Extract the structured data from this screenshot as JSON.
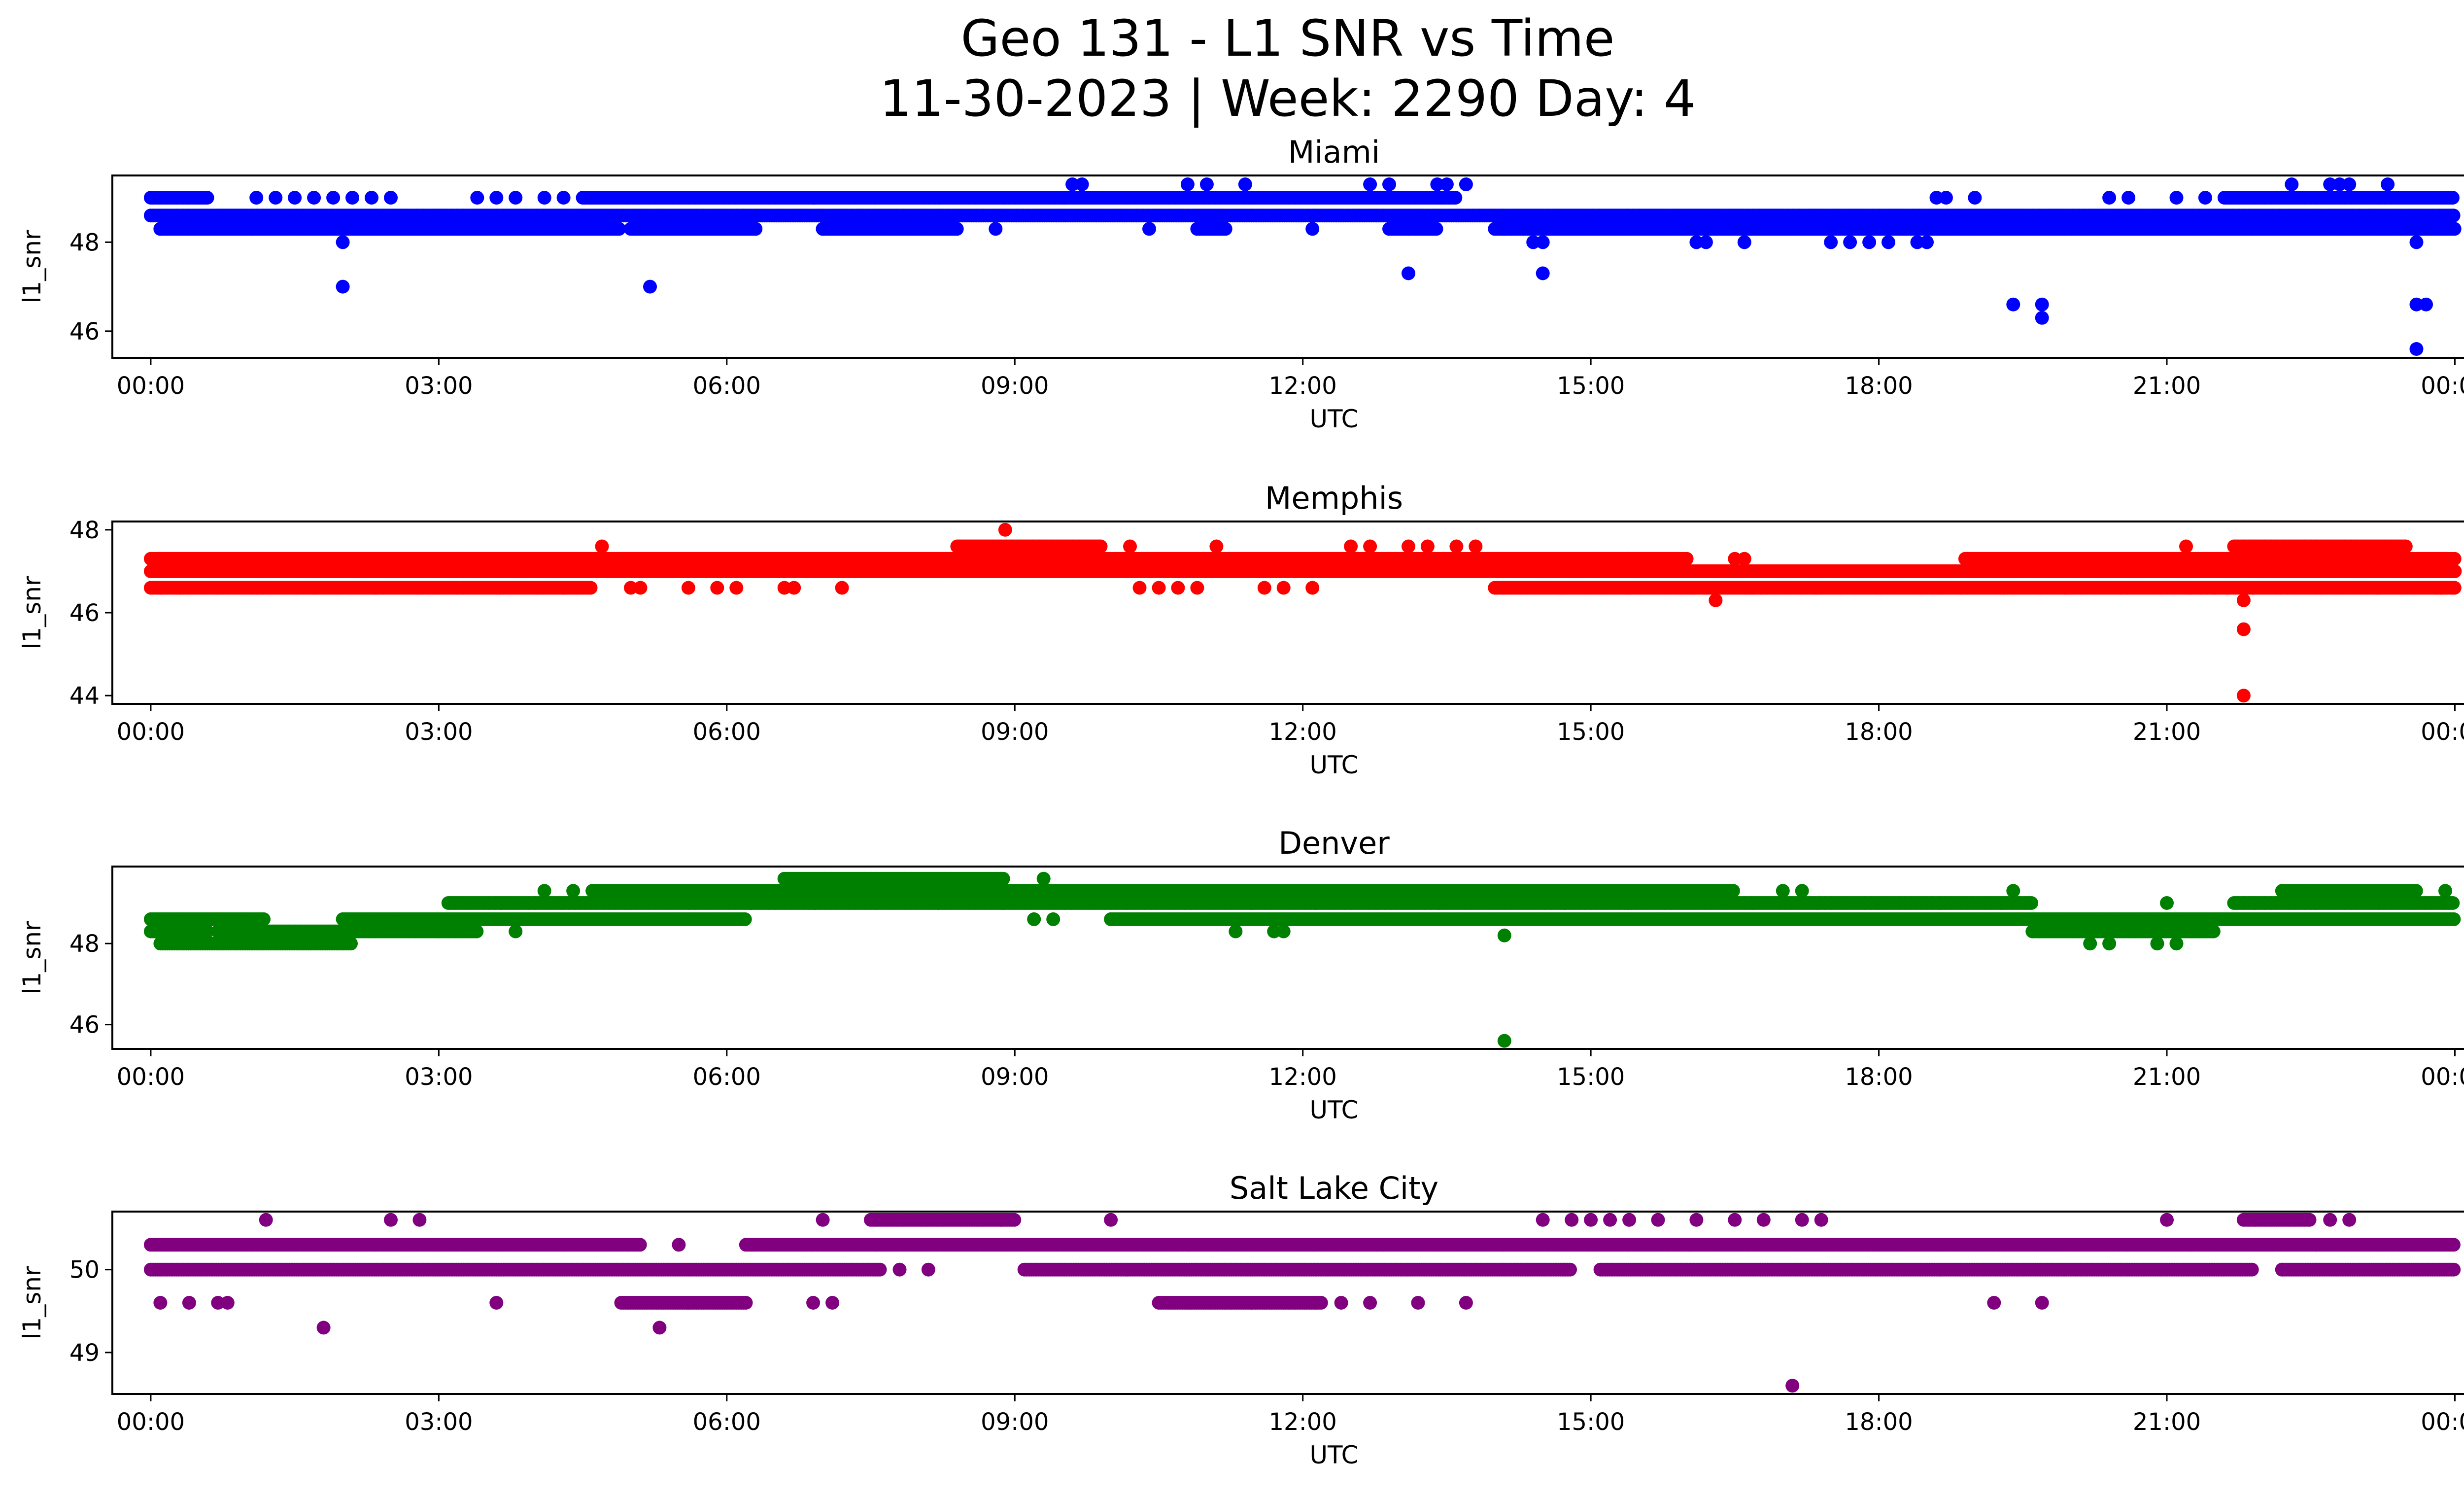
{
  "title_line1": "Geo 131 - L1 SNR vs Time",
  "title_line2": "11-30-2023 | Week: 2290 Day: 4",
  "chart_data": [
    {
      "type": "scatter",
      "title": "Miami",
      "xlabel": "UTC",
      "ylabel": "l1_snr",
      "color": "#0000ff",
      "xlim": [
        -0.4,
        25.05
      ],
      "ylim": [
        45.4,
        49.5
      ],
      "x_ticks": [
        "00:00",
        "03:00",
        "06:00",
        "09:00",
        "12:00",
        "15:00",
        "18:00",
        "21:00",
        "00:00"
      ],
      "y_ticks": [
        46,
        48
      ],
      "bands": [
        {
          "level": 48.3,
          "segments": [
            [
              0.1,
              4.9
            ],
            [
              5.0,
              6.3
            ],
            [
              7.0,
              8.4
            ],
            [
              10.9,
              11.2
            ],
            [
              12.9,
              13.4
            ],
            [
              14.0,
              24.0
            ]
          ]
        },
        {
          "level": 48.6,
          "segments": [
            [
              0.0,
              24.0
            ]
          ]
        },
        {
          "level": 49.0,
          "segments": [
            [
              0.0,
              0.6
            ],
            [
              4.5,
              13.6
            ],
            [
              21.6,
              24.0
            ]
          ]
        }
      ],
      "points": [
        [
          0.1,
          48.3
        ],
        [
          0.5,
          49.0
        ],
        [
          1.1,
          49.0
        ],
        [
          1.3,
          49.0
        ],
        [
          1.5,
          49.0
        ],
        [
          1.7,
          49.0
        ],
        [
          1.9,
          49.0
        ],
        [
          2.0,
          48.0
        ],
        [
          2.0,
          47.0
        ],
        [
          2.1,
          49.0
        ],
        [
          2.3,
          49.0
        ],
        [
          2.5,
          49.0
        ],
        [
          3.4,
          49.0
        ],
        [
          3.6,
          49.0
        ],
        [
          3.8,
          49.0
        ],
        [
          4.1,
          49.0
        ],
        [
          4.3,
          49.0
        ],
        [
          5.2,
          47.0
        ],
        [
          6.3,
          48.3
        ],
        [
          6.9,
          49.0
        ],
        [
          7.0,
          48.3
        ],
        [
          8.8,
          48.3
        ],
        [
          9.6,
          49.3
        ],
        [
          9.7,
          49.3
        ],
        [
          10.4,
          48.3
        ],
        [
          10.8,
          49.3
        ],
        [
          11.0,
          49.3
        ],
        [
          11.4,
          49.3
        ],
        [
          12.1,
          48.3
        ],
        [
          12.7,
          49.3
        ],
        [
          12.9,
          49.3
        ],
        [
          13.1,
          47.3
        ],
        [
          13.1,
          48.3
        ],
        [
          13.4,
          49.3
        ],
        [
          13.5,
          49.3
        ],
        [
          13.7,
          49.3
        ],
        [
          14.1,
          48.3
        ],
        [
          14.4,
          48.0
        ],
        [
          14.5,
          48.0
        ],
        [
          14.5,
          47.3
        ],
        [
          16.1,
          48.0
        ],
        [
          16.2,
          48.0
        ],
        [
          16.6,
          48.0
        ],
        [
          17.5,
          48.0
        ],
        [
          17.7,
          48.0
        ],
        [
          17.9,
          48.0
        ],
        [
          18.1,
          48.0
        ],
        [
          18.4,
          48.0
        ],
        [
          18.5,
          48.0
        ],
        [
          18.6,
          49.0
        ],
        [
          18.7,
          49.0
        ],
        [
          19.0,
          49.0
        ],
        [
          19.4,
          46.6
        ],
        [
          19.7,
          46.6
        ],
        [
          19.7,
          46.3
        ],
        [
          20.4,
          49.0
        ],
        [
          20.6,
          49.0
        ],
        [
          21.1,
          49.0
        ],
        [
          21.4,
          49.0
        ],
        [
          22.3,
          49.3
        ],
        [
          22.7,
          49.3
        ],
        [
          22.8,
          49.3
        ],
        [
          22.9,
          49.3
        ],
        [
          23.3,
          49.3
        ],
        [
          23.6,
          48.0
        ],
        [
          23.6,
          46.6
        ],
        [
          23.7,
          46.6
        ],
        [
          23.6,
          45.6
        ],
        [
          23.6,
          48.3
        ]
      ]
    },
    {
      "type": "scatter",
      "title": "Memphis",
      "xlabel": "UTC",
      "ylabel": "l1_snr",
      "color": "#ff0000",
      "xlim": [
        -0.4,
        25.05
      ],
      "ylim": [
        43.8,
        48.2
      ],
      "x_ticks": [
        "00:00",
        "03:00",
        "06:00",
        "09:00",
        "12:00",
        "15:00",
        "18:00",
        "21:00",
        "00:00"
      ],
      "y_ticks": [
        44,
        46,
        48
      ],
      "bands": [
        {
          "level": 46.6,
          "segments": [
            [
              0.0,
              4.6
            ],
            [
              14.0,
              24.0
            ]
          ]
        },
        {
          "level": 47.0,
          "segments": [
            [
              0.0,
              24.0
            ]
          ]
        },
        {
          "level": 47.3,
          "segments": [
            [
              0.0,
              16.0
            ],
            [
              18.9,
              24.0
            ]
          ]
        },
        {
          "level": 47.6,
          "segments": [
            [
              8.4,
              9.9
            ],
            [
              21.7,
              23.5
            ]
          ]
        }
      ],
      "points": [
        [
          0.1,
          46.6
        ],
        [
          0.3,
          46.6
        ],
        [
          4.7,
          47.6
        ],
        [
          5.0,
          46.6
        ],
        [
          5.1,
          46.6
        ],
        [
          5.6,
          46.6
        ],
        [
          5.9,
          46.6
        ],
        [
          6.1,
          46.6
        ],
        [
          6.6,
          46.6
        ],
        [
          6.7,
          46.6
        ],
        [
          7.2,
          46.6
        ],
        [
          8.9,
          48.0
        ],
        [
          10.2,
          47.6
        ],
        [
          10.3,
          46.6
        ],
        [
          10.5,
          46.6
        ],
        [
          10.7,
          46.6
        ],
        [
          10.9,
          46.6
        ],
        [
          11.1,
          47.6
        ],
        [
          11.6,
          46.6
        ],
        [
          11.8,
          46.6
        ],
        [
          12.1,
          46.6
        ],
        [
          12.5,
          47.6
        ],
        [
          12.7,
          47.6
        ],
        [
          13.1,
          47.6
        ],
        [
          13.3,
          47.6
        ],
        [
          13.6,
          47.6
        ],
        [
          13.8,
          47.6
        ],
        [
          16.3,
          46.3
        ],
        [
          16.5,
          47.3
        ],
        [
          16.6,
          47.3
        ],
        [
          21.2,
          47.6
        ],
        [
          21.5,
          46.6
        ],
        [
          21.8,
          46.6
        ],
        [
          21.8,
          46.3
        ],
        [
          21.8,
          45.6
        ],
        [
          21.8,
          44.0
        ],
        [
          23.8,
          46.6
        ],
        [
          24.0,
          47.0
        ]
      ]
    },
    {
      "type": "scatter",
      "title": "Denver",
      "xlabel": "UTC",
      "ylabel": "l1_snr",
      "color": "#008000",
      "xlim": [
        -0.4,
        25.05
      ],
      "ylim": [
        45.4,
        49.9
      ],
      "x_ticks": [
        "00:00",
        "03:00",
        "06:00",
        "09:00",
        "12:00",
        "15:00",
        "18:00",
        "21:00",
        "00:00"
      ],
      "y_ticks": [
        46,
        48
      ],
      "bands": [
        {
          "level": 48.0,
          "segments": [
            [
              0.1,
              2.1
            ]
          ]
        },
        {
          "level": 48.3,
          "segments": [
            [
              0.0,
              0.6
            ],
            [
              0.7,
              3.4
            ],
            [
              19.6,
              21.5
            ]
          ]
        },
        {
          "level": 48.6,
          "segments": [
            [
              0.0,
              1.2
            ],
            [
              2.0,
              6.2
            ],
            [
              10.0,
              24.0
            ]
          ]
        },
        {
          "level": 49.0,
          "segments": [
            [
              3.1,
              19.6
            ],
            [
              21.7,
              24.0
            ]
          ]
        },
        {
          "level": 49.3,
          "segments": [
            [
              4.6,
              16.5
            ],
            [
              22.2,
              23.6
            ]
          ]
        },
        {
          "level": 49.6,
          "segments": [
            [
              6.6,
              8.9
            ]
          ]
        }
      ],
      "points": [
        [
          3.8,
          48.3
        ],
        [
          4.1,
          49.3
        ],
        [
          4.4,
          49.3
        ],
        [
          9.2,
          48.6
        ],
        [
          9.4,
          48.6
        ],
        [
          9.3,
          49.6
        ],
        [
          11.3,
          48.3
        ],
        [
          11.7,
          48.3
        ],
        [
          11.8,
          48.3
        ],
        [
          14.1,
          48.6
        ],
        [
          14.1,
          48.2
        ],
        [
          14.1,
          45.6
        ],
        [
          15.4,
          48.6
        ],
        [
          15.7,
          48.6
        ],
        [
          17.0,
          49.3
        ],
        [
          17.2,
          49.3
        ],
        [
          19.4,
          49.3
        ],
        [
          20.2,
          48.0
        ],
        [
          20.4,
          48.0
        ],
        [
          20.9,
          48.0
        ],
        [
          21.0,
          49.0
        ],
        [
          21.1,
          48.0
        ],
        [
          23.9,
          49.3
        ]
      ]
    },
    {
      "type": "scatter",
      "title": "Salt Lake City",
      "xlabel": "UTC",
      "ylabel": "l1_snr",
      "color": "#800080",
      "xlim": [
        -0.4,
        25.05
      ],
      "ylim": [
        48.5,
        50.7
      ],
      "x_ticks": [
        "00:00",
        "03:00",
        "06:00",
        "09:00",
        "12:00",
        "15:00",
        "18:00",
        "21:00",
        "00:00"
      ],
      "y_ticks": [
        49,
        50
      ],
      "bands": [
        {
          "level": 50.0,
          "segments": [
            [
              0.0,
              7.6
            ],
            [
              9.1,
              14.8
            ],
            [
              15.1,
              21.9
            ],
            [
              22.2,
              24.0
            ]
          ]
        },
        {
          "level": 50.3,
          "segments": [
            [
              0.0,
              5.1
            ],
            [
              6.2,
              24.0
            ]
          ]
        },
        {
          "level": 50.6,
          "segments": [
            [
              7.5,
              9.0
            ],
            [
              21.8,
              22.5
            ]
          ]
        },
        {
          "level": 49.6,
          "segments": [
            [
              4.9,
              6.2
            ],
            [
              10.5,
              12.2
            ]
          ]
        }
      ],
      "points": [
        [
          1.2,
          50.6
        ],
        [
          2.5,
          50.6
        ],
        [
          2.8,
          50.6
        ],
        [
          0.1,
          49.6
        ],
        [
          0.4,
          49.6
        ],
        [
          0.7,
          49.6
        ],
        [
          0.8,
          49.6
        ],
        [
          1.8,
          49.3
        ],
        [
          3.6,
          49.6
        ],
        [
          5.3,
          49.3
        ],
        [
          5.5,
          50.3
        ],
        [
          6.9,
          49.6
        ],
        [
          7.1,
          49.6
        ],
        [
          7.0,
          50.6
        ],
        [
          7.8,
          50.0
        ],
        [
          8.1,
          50.0
        ],
        [
          10.0,
          50.6
        ],
        [
          12.4,
          49.6
        ],
        [
          12.7,
          49.6
        ],
        [
          13.2,
          49.6
        ],
        [
          13.7,
          49.6
        ],
        [
          14.5,
          50.6
        ],
        [
          14.8,
          50.6
        ],
        [
          15.0,
          50.6
        ],
        [
          15.2,
          50.6
        ],
        [
          15.4,
          50.6
        ],
        [
          15.7,
          50.6
        ],
        [
          16.1,
          50.6
        ],
        [
          16.5,
          50.6
        ],
        [
          16.8,
          50.6
        ],
        [
          17.2,
          50.6
        ],
        [
          17.4,
          50.6
        ],
        [
          17.1,
          48.6
        ],
        [
          19.2,
          49.6
        ],
        [
          19.7,
          49.6
        ],
        [
          21.0,
          50.6
        ],
        [
          22.2,
          50.0
        ],
        [
          22.7,
          50.6
        ],
        [
          22.9,
          50.6
        ]
      ]
    }
  ]
}
